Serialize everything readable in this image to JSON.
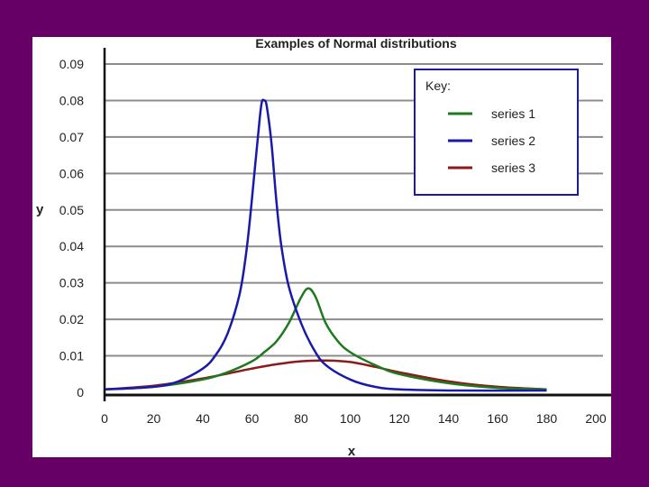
{
  "colors": {
    "background": "#660066",
    "panel": "#ffffff",
    "grid": "#8c8c8c",
    "axis": "#111111",
    "legend_border": "#1a1aa6"
  },
  "chart_data": {
    "type": "line",
    "title": "Examples of Normal distributions",
    "xlabel": "x",
    "ylabel": "y",
    "xlim": [
      0,
      200
    ],
    "ylim": [
      0,
      0.09
    ],
    "x_ticks": [
      0,
      20,
      40,
      60,
      80,
      100,
      120,
      140,
      160,
      180,
      200
    ],
    "y_ticks": [
      0,
      0.01,
      0.02,
      0.03,
      0.04,
      0.05,
      0.06,
      0.07,
      0.08,
      0.09
    ],
    "y_tick_labels": [
      "0",
      "0.01",
      "0.02",
      "0.03",
      "0.04",
      "0.05",
      "0.06",
      "0.07",
      "0.08",
      "0.09"
    ],
    "grid": "horizontal",
    "legend": {
      "title": "Key:",
      "position": "top-right"
    },
    "series": [
      {
        "name": "series 1",
        "color": "#1f7a1f",
        "points": [
          [
            0,
            0.0008
          ],
          [
            20,
            0.0015
          ],
          [
            40,
            0.0035
          ],
          [
            50,
            0.0055
          ],
          [
            60,
            0.0085
          ],
          [
            65,
            0.011
          ],
          [
            70,
            0.014
          ],
          [
            75,
            0.019
          ],
          [
            80,
            0.026
          ],
          [
            83,
            0.0285
          ],
          [
            86,
            0.026
          ],
          [
            90,
            0.019
          ],
          [
            95,
            0.014
          ],
          [
            100,
            0.011
          ],
          [
            110,
            0.0075
          ],
          [
            120,
            0.005
          ],
          [
            140,
            0.0025
          ],
          [
            160,
            0.0012
          ],
          [
            180,
            0.0008
          ]
        ]
      },
      {
        "name": "series 2",
        "color": "#1a1aaa",
        "points": [
          [
            0,
            0.0008
          ],
          [
            20,
            0.0015
          ],
          [
            30,
            0.003
          ],
          [
            40,
            0.0065
          ],
          [
            45,
            0.01
          ],
          [
            50,
            0.016
          ],
          [
            55,
            0.027
          ],
          [
            58,
            0.04
          ],
          [
            61,
            0.06
          ],
          [
            63,
            0.074
          ],
          [
            64,
            0.0795
          ],
          [
            65,
            0.08
          ],
          [
            66,
            0.0785
          ],
          [
            68,
            0.068
          ],
          [
            70,
            0.052
          ],
          [
            72,
            0.04
          ],
          [
            75,
            0.029
          ],
          [
            80,
            0.019
          ],
          [
            85,
            0.012
          ],
          [
            90,
            0.0075
          ],
          [
            100,
            0.0035
          ],
          [
            110,
            0.0015
          ],
          [
            120,
            0.0008
          ],
          [
            140,
            0.0005
          ],
          [
            180,
            0.0005
          ]
        ]
      },
      {
        "name": "series 3",
        "color": "#8b1a1a",
        "points": [
          [
            0,
            0.0008
          ],
          [
            20,
            0.0018
          ],
          [
            40,
            0.0038
          ],
          [
            60,
            0.0065
          ],
          [
            70,
            0.0077
          ],
          [
            80,
            0.0085
          ],
          [
            90,
            0.0087
          ],
          [
            100,
            0.0083
          ],
          [
            110,
            0.007
          ],
          [
            120,
            0.0055
          ],
          [
            140,
            0.003
          ],
          [
            160,
            0.0015
          ],
          [
            180,
            0.0008
          ]
        ]
      }
    ]
  }
}
